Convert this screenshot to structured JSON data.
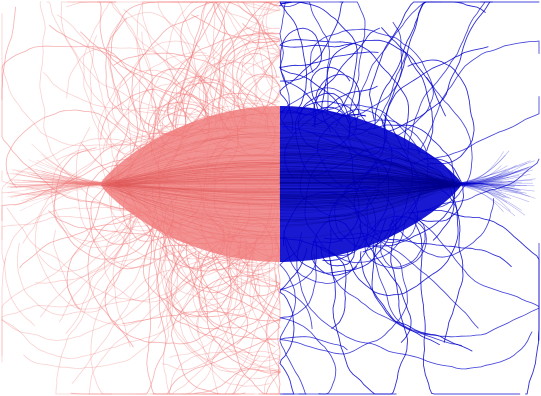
{
  "image": {
    "left_color": "#f07a7a",
    "right_color": "#0000cc",
    "background": "#ffffff"
  }
}
